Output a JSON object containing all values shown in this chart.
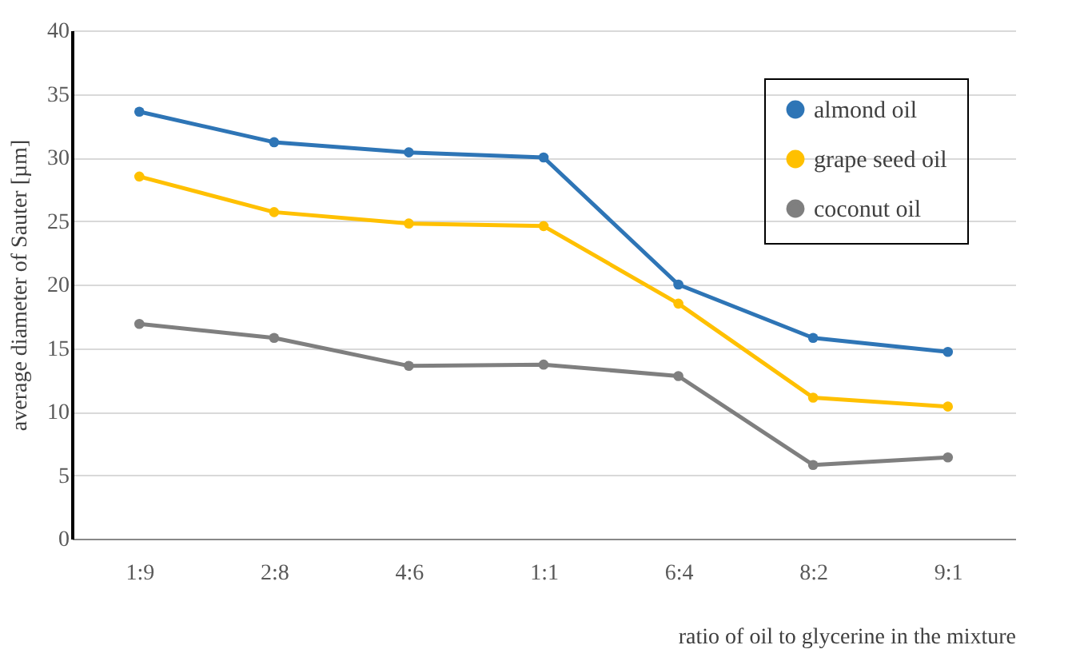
{
  "chart_data": {
    "type": "line",
    "xlabel": "ratio of oil to glycerine in the mixture",
    "ylabel": "average diameter of Sauter [µm]",
    "categories": [
      "1:9",
      "2:8",
      "4:6",
      "1:1",
      "6:4",
      "8:2",
      "9:1"
    ],
    "series": [
      {
        "name": "almond oil",
        "color": "#2e75b6",
        "values": [
          33.6,
          31.2,
          30.4,
          30.0,
          20.0,
          15.8,
          14.7
        ]
      },
      {
        "name": "grape seed oil",
        "color": "#ffc000",
        "values": [
          28.5,
          25.7,
          24.8,
          24.6,
          18.5,
          11.1,
          10.4
        ]
      },
      {
        "name": "coconut oil",
        "color": "#7f7f7f",
        "values": [
          16.9,
          15.8,
          13.6,
          13.7,
          12.8,
          5.8,
          6.4
        ]
      }
    ],
    "ylim": [
      0,
      40
    ],
    "yticks": [
      0,
      5,
      10,
      15,
      20,
      25,
      30,
      35,
      40
    ],
    "grid": "y",
    "legend": "top right",
    "marker": "circle",
    "line_style": "solid"
  }
}
